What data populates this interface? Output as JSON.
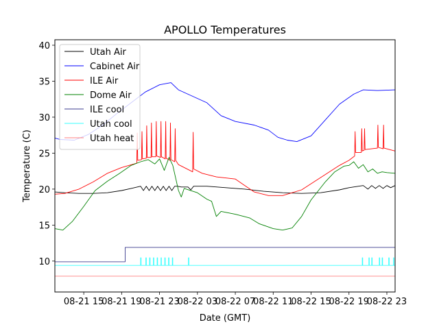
{
  "chart_data": {
    "type": "line",
    "title": "APOLLO Temperatures",
    "xlabel": "Date (GMT)",
    "ylabel": "Temperature (C)",
    "x_units": "hours since 08-21 00:00 GMT",
    "xlim": [
      11.95,
      47.87
    ],
    "ylim": [
      5.7,
      40.76
    ],
    "grid": false,
    "legend_position": "upper-left",
    "x_ticks": [
      {
        "value": 15,
        "label": "08-21 15"
      },
      {
        "value": 19,
        "label": "08-21 19"
      },
      {
        "value": 23,
        "label": "08-21 23"
      },
      {
        "value": 27,
        "label": "08-22 03"
      },
      {
        "value": 31,
        "label": "08-22 07"
      },
      {
        "value": 35,
        "label": "08-22 11"
      },
      {
        "value": 39,
        "label": "08-22 15"
      },
      {
        "value": 43,
        "label": "08-22 19"
      },
      {
        "value": 47,
        "label": "08-22 23"
      }
    ],
    "y_ticks": [
      {
        "value": 10,
        "label": "10"
      },
      {
        "value": 15,
        "label": "15"
      },
      {
        "value": 20,
        "label": "20"
      },
      {
        "value": 25,
        "label": "25"
      },
      {
        "value": 30,
        "label": "30"
      },
      {
        "value": 35,
        "label": "35"
      },
      {
        "value": 40,
        "label": "40"
      }
    ],
    "series": [
      {
        "name": "Utah Air",
        "color": "#000000",
        "x": [
          11.95,
          13.0,
          14.5,
          16.0,
          17.5,
          19.0,
          20.0,
          21.0,
          21.3,
          21.6,
          21.9,
          22.2,
          22.5,
          22.8,
          23.1,
          23.4,
          23.7,
          24.0,
          24.3,
          24.6,
          24.9,
          25.3,
          26.0,
          26.3,
          26.6,
          28.0,
          30.0,
          32.0,
          34.0,
          36.0,
          38.0,
          40.0,
          42.0,
          43.0,
          44.5,
          45.0,
          45.4,
          45.8,
          46.2,
          46.6,
          47.0,
          47.4,
          47.87
        ],
        "y": [
          19.6,
          19.5,
          19.4,
          19.4,
          19.5,
          19.8,
          20.1,
          20.4,
          19.8,
          20.4,
          19.8,
          20.4,
          19.8,
          20.4,
          19.8,
          20.4,
          19.8,
          20.4,
          19.8,
          20.4,
          20.4,
          20.3,
          20.3,
          19.9,
          20.4,
          20.4,
          20.2,
          20.0,
          19.7,
          19.5,
          19.4,
          19.5,
          19.9,
          20.2,
          20.5,
          20.0,
          20.5,
          20.1,
          20.5,
          20.1,
          20.5,
          20.2,
          20.5
        ]
      },
      {
        "name": "Cabinet Air",
        "color": "#0000ff",
        "x": [
          11.95,
          12.5,
          14.0,
          15.5,
          17.0,
          18.5,
          20.0,
          21.5,
          23.0,
          24.2,
          25.0,
          26.5,
          28.0,
          29.5,
          31.0,
          33.0,
          34.5,
          35.5,
          36.5,
          37.5,
          39.0,
          40.5,
          42.0,
          43.5,
          44.5,
          46.0,
          47.87
        ],
        "y": [
          27.1,
          26.9,
          26.8,
          27.6,
          28.9,
          30.5,
          32.0,
          33.5,
          34.5,
          34.8,
          33.8,
          32.9,
          32.0,
          30.2,
          29.4,
          28.9,
          28.2,
          27.2,
          26.8,
          26.6,
          27.4,
          29.6,
          31.8,
          33.2,
          33.8,
          33.7,
          33.8
        ]
      },
      {
        "name": "ILE Air",
        "color": "#ff0000",
        "x": [
          11.95,
          13.0,
          14.5,
          16.0,
          17.5,
          19.0,
          20.6,
          20.65,
          20.7,
          21.1,
          21.15,
          21.2,
          21.6,
          21.65,
          21.7,
          22.1,
          22.15,
          22.2,
          22.6,
          22.65,
          22.7,
          23.1,
          23.15,
          23.2,
          23.6,
          23.65,
          23.7,
          24.1,
          24.15,
          24.2,
          24.6,
          24.65,
          24.7,
          25.0,
          26.5,
          26.55,
          26.6,
          27.5,
          29.0,
          31.0,
          32.0,
          33.0,
          34.5,
          36.0,
          38.0,
          40.0,
          42.0,
          43.0,
          43.6,
          43.65,
          43.7,
          44.3,
          44.35,
          44.4,
          44.6,
          44.65,
          44.7,
          46.0,
          46.05,
          46.1,
          46.6,
          46.65,
          46.7,
          47.87
        ],
        "y": [
          19.3,
          19.4,
          20.0,
          21.0,
          22.2,
          23.0,
          23.6,
          27.8,
          24.0,
          24.1,
          28.0,
          24.2,
          24.3,
          28.8,
          24.4,
          24.4,
          29.2,
          24.5,
          24.5,
          29.4,
          24.6,
          24.4,
          29.4,
          24.5,
          24.2,
          29.4,
          24.3,
          24.0,
          29.2,
          24.1,
          23.8,
          28.4,
          24.0,
          23.4,
          22.4,
          27.9,
          22.8,
          22.2,
          21.7,
          21.4,
          20.5,
          19.6,
          19.1,
          19.1,
          19.9,
          21.6,
          23.3,
          24.0,
          24.6,
          28.0,
          25.1,
          25.1,
          28.4,
          25.3,
          25.4,
          28.4,
          25.5,
          25.7,
          28.9,
          25.8,
          25.6,
          28.9,
          25.7,
          25.3
        ]
      },
      {
        "name": "Dome Air",
        "color": "#008000",
        "x": [
          11.95,
          12.8,
          13.8,
          15.0,
          16.2,
          17.5,
          18.8,
          20.0,
          21.0,
          21.8,
          22.5,
          23.0,
          23.5,
          24.0,
          24.4,
          25.0,
          25.3,
          25.6,
          27.0,
          28.0,
          28.5,
          29.0,
          29.5,
          31.0,
          32.5,
          33.5,
          35.0,
          36.0,
          37.0,
          38.0,
          39.0,
          40.5,
          41.5,
          42.5,
          43.0,
          43.5,
          44.0,
          44.5,
          45.0,
          45.5,
          46.0,
          46.5,
          47.0,
          47.87
        ],
        "y": [
          14.5,
          14.3,
          15.5,
          17.6,
          19.8,
          21.1,
          22.2,
          23.3,
          23.8,
          24.1,
          23.5,
          24.2,
          22.6,
          24.4,
          23.3,
          19.8,
          18.9,
          20.1,
          19.5,
          18.6,
          18.3,
          16.2,
          16.9,
          16.5,
          16.0,
          15.2,
          14.5,
          14.3,
          14.6,
          16.2,
          18.5,
          21.0,
          22.4,
          23.2,
          23.3,
          23.8,
          22.9,
          23.4,
          22.4,
          22.8,
          22.2,
          22.4,
          22.3,
          22.2
        ]
      },
      {
        "name": "ILE cool",
        "color": "#3b3b8f",
        "x": [
          11.95,
          19.37,
          19.37,
          47.87
        ],
        "y": [
          9.9,
          9.9,
          11.9,
          11.9
        ]
      },
      {
        "name": "Utah cool",
        "color": "#33ffff",
        "pulse_base": 9.4,
        "pulse_peak": 10.45,
        "pulse_times": [
          21.0,
          21.55,
          21.95,
          22.35,
          22.75,
          23.15,
          23.55,
          23.95,
          24.35,
          26.05,
          44.4,
          45.1,
          45.4,
          46.2,
          46.5,
          47.2,
          47.7
        ]
      },
      {
        "name": "Utah heat",
        "color": "#ff7f7f",
        "x": [
          11.95,
          47.87
        ],
        "y": [
          7.9,
          7.9
        ]
      }
    ]
  }
}
